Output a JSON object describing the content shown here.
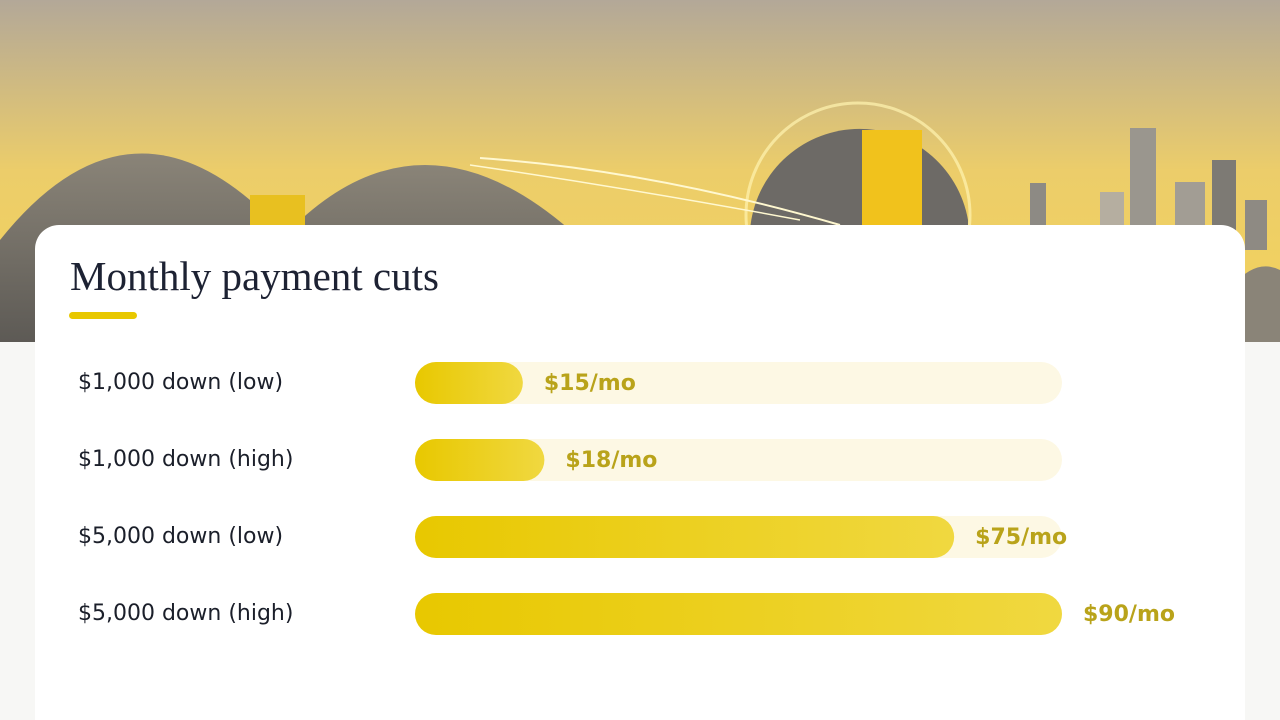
{
  "chart_data": {
    "type": "bar",
    "orientation": "horizontal",
    "title": "Monthly payment cuts",
    "categories": [
      "$1,000 down (low)",
      "$1,000 down (high)",
      "$5,000 down (low)",
      "$5,000 down (high)"
    ],
    "values": [
      15,
      18,
      75,
      90
    ],
    "value_labels": [
      "$15/mo",
      "$18/mo",
      "$75/mo",
      "$90/mo"
    ],
    "color": "#e8c800",
    "xlim": [
      0,
      90
    ]
  }
}
